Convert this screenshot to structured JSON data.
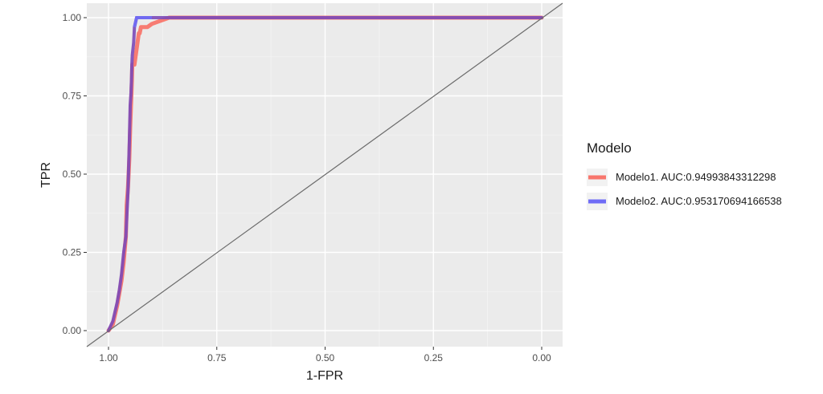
{
  "chart_data": {
    "type": "line",
    "xlabel": "1-FPR",
    "ylabel": "TPR",
    "x_reversed": true,
    "xlim": [
      1.0,
      0.0
    ],
    "ylim": [
      0.0,
      1.0
    ],
    "x_ticks": [
      "1.00",
      "0.75",
      "0.50",
      "0.25",
      "0.00"
    ],
    "y_ticks": [
      "0.00",
      "0.25",
      "0.50",
      "0.75",
      "1.00"
    ],
    "grid": true,
    "legend_position": "right",
    "legend_title": "Modelo",
    "diagonal_reference": true,
    "colors": {
      "Modelo1": "#f8766d",
      "Modelo2": "#6f6cf6",
      "overlap": "#7b49b8",
      "reference": "#6b6b6b"
    },
    "series": [
      {
        "name": "Modelo1. AUC:0.94993843312298",
        "x": [
          1.0,
          0.99,
          0.985,
          0.98,
          0.975,
          0.97,
          0.965,
          0.96,
          0.958,
          0.955,
          0.952,
          0.95,
          0.948,
          0.947,
          0.946,
          0.945,
          0.94,
          0.935,
          0.93,
          0.928,
          0.925,
          0.92,
          0.91,
          0.9,
          0.88,
          0.86,
          0.84,
          0.0
        ],
        "y": [
          0.0,
          0.02,
          0.05,
          0.08,
          0.12,
          0.16,
          0.22,
          0.3,
          0.4,
          0.46,
          0.55,
          0.65,
          0.72,
          0.76,
          0.8,
          0.85,
          0.85,
          0.9,
          0.95,
          0.95,
          0.97,
          0.97,
          0.97,
          0.98,
          0.99,
          1.0,
          1.0,
          1.0
        ]
      },
      {
        "name": "Modelo2. AUC:0.953170694166538",
        "x": [
          1.0,
          0.99,
          0.985,
          0.98,
          0.975,
          0.97,
          0.965,
          0.96,
          0.955,
          0.952,
          0.95,
          0.948,
          0.947,
          0.946,
          0.945,
          0.942,
          0.94,
          0.935,
          0.93,
          0.92,
          0.91,
          0.9,
          0.88,
          0.86,
          0.84,
          0.0
        ],
        "y": [
          0.0,
          0.03,
          0.06,
          0.09,
          0.13,
          0.18,
          0.25,
          0.3,
          0.45,
          0.6,
          0.72,
          0.76,
          0.8,
          0.85,
          0.88,
          0.92,
          0.97,
          1.0,
          1.0,
          1.0,
          1.0,
          1.0,
          1.0,
          1.0,
          1.0,
          1.0
        ]
      }
    ]
  }
}
